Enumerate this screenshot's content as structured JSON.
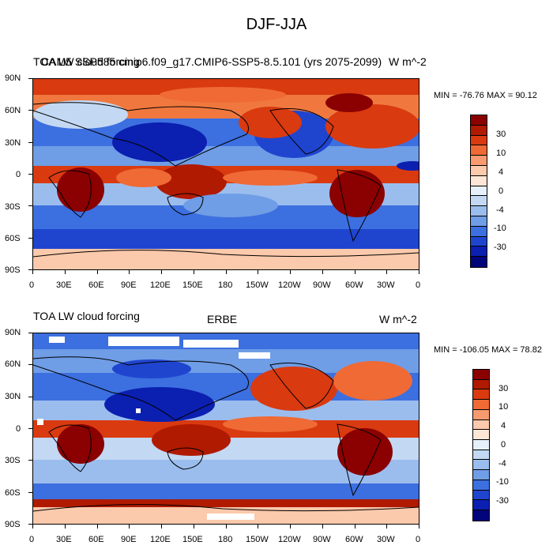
{
  "figure": {
    "title": "DJF-JJA"
  },
  "panels": [
    {
      "left_title": "TOA LW cloud forcing",
      "center_title": "CAM5 SSP585 cmip6.f09_g17.CMIP6-SSP5-8.5.101 (yrs 2075-2099)",
      "right_title": "W m^-2",
      "min_max_text": "MIN = -76.76 MAX =  90.12",
      "stats": {
        "min": -76.76,
        "max": 90.12
      }
    },
    {
      "left_title": "TOA LW cloud forcing",
      "center_title": "ERBE",
      "right_title": "W m^-2",
      "min_max_text": "MIN = -106.05 MAX =  78.82",
      "stats": {
        "min": -106.05,
        "max": 78.82
      }
    }
  ],
  "axes": {
    "lat_labels": [
      "90N",
      "60N",
      "30N",
      "0",
      "30S",
      "60S",
      "90S"
    ],
    "lon_labels": [
      "0",
      "30E",
      "60E",
      "90E",
      "120E",
      "150E",
      "180",
      "150W",
      "120W",
      "90W",
      "60W",
      "30W",
      "0"
    ]
  },
  "colorbar": {
    "labels": [
      "30",
      "10",
      "4",
      "0",
      "-4",
      "-10",
      "-30"
    ],
    "colors": [
      "#8b0000",
      "#b01a00",
      "#d93a10",
      "#ef6a35",
      "#f79a70",
      "#fbc9ab",
      "#fde6d6",
      "#e6f0fa",
      "#c3d8f3",
      "#9bbdee",
      "#6f9de6",
      "#3c6fdf",
      "#1f45cf",
      "#0b1fb0",
      "#02057a"
    ]
  }
}
